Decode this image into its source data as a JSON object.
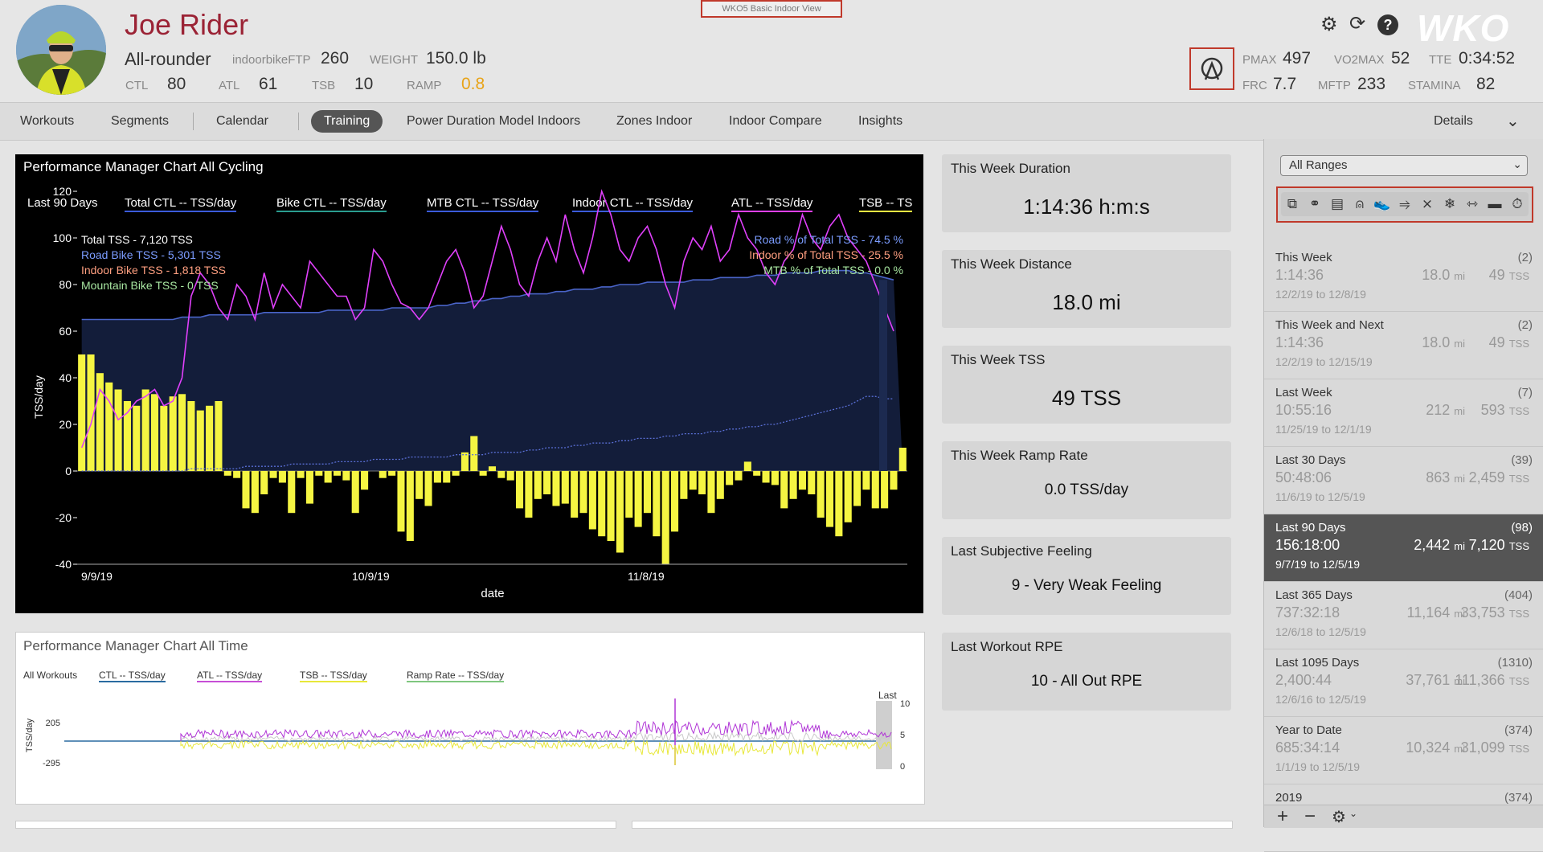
{
  "header": {
    "view_tag": "WKO5 Basic Indoor View",
    "athlete_name": "Joe Rider",
    "phenotype": "All-rounder",
    "ftp_label": "indoorbikeFTP",
    "ftp_value": "260",
    "weight_label": "WEIGHT",
    "weight_value": "150.0",
    "weight_unit": "lb",
    "ctl_label": "CTL",
    "ctl_value": "80",
    "atl_label": "ATL",
    "atl_value": "61",
    "tsb_label": "TSB",
    "tsb_value": "10",
    "ramp_label": "RAMP",
    "ramp_value": "0.8",
    "pmax_label": "PMAX",
    "pmax_value": "497",
    "vo2_label": "VO2MAX",
    "vo2_value": "52",
    "tte_label": "TTE",
    "tte_value": "0:34:52",
    "frc_label": "FRC",
    "frc_value": "7.7",
    "mftp_label": "MFTP",
    "mftp_value": "233",
    "stamina_label": "STAMINA",
    "stamina_value": "82",
    "logo": "WKO",
    "ramp_color": "#e8a317"
  },
  "tabs": {
    "items": [
      "Workouts",
      "Segments",
      "Calendar",
      "Training",
      "Power Duration Model Indoors",
      "Zones Indoor",
      "Indoor Compare",
      "Insights"
    ],
    "active": "Training",
    "details": "Details"
  },
  "pmc": {
    "title": "Performance Manager Chart All Cycling",
    "range_label": "Last 90 Days",
    "legend": [
      {
        "label": "Total CTL  -- TSS/day",
        "color": "#3b5bdb"
      },
      {
        "label": "Bike CTL  -- TSS/day",
        "color": "#2a9d8f"
      },
      {
        "label": "MTB CTL  -- TSS/day",
        "color": "#3b5bdb"
      },
      {
        "label": "Indoor CTL  -- TSS/day",
        "color": "#3b5bdb"
      },
      {
        "label": "ATL  -- TSS/day",
        "color": "#e040fb"
      },
      {
        "label": "TSB  -- TS",
        "color": "#f5f542"
      }
    ],
    "left_notes": [
      "Total TSS - 7,120 TSS",
      "Road Bike TSS - 5,301 TSS",
      "Indoor Bike TSS - 1,818 TSS",
      "Mountain Bike TSS - 0 TSS"
    ],
    "right_notes": [
      "Road % of Total TSS - 74.5 %",
      "Indoor % of Total TSS - 25.5 %",
      "MTB % of Total TSS - 0.0 %"
    ],
    "note_colors": [
      "#ffffff",
      "#7b9cff",
      "#ff9f80",
      "#a8e6a1"
    ],
    "yticks": [
      "120",
      "100",
      "80",
      "60",
      "40",
      "20",
      "0",
      "-20",
      "-40"
    ],
    "xticks": [
      "9/9/19",
      "10/9/19",
      "11/8/19"
    ],
    "xlabel": "date",
    "ylabel": "TSS/day"
  },
  "chart_data": {
    "type": "bar",
    "title": "Performance Manager Chart All Cycling",
    "xlabel": "date",
    "ylabel": "TSS/day",
    "ylim": [
      -40,
      125
    ],
    "x_ticks": [
      "9/9/19",
      "10/9/19",
      "11/8/19"
    ],
    "series": [
      {
        "name": "TSB  -- TS",
        "type": "bar",
        "values": [
          50,
          50,
          42,
          38,
          35,
          30,
          28,
          35,
          33,
          28,
          32,
          33,
          30,
          26,
          28,
          30,
          -2,
          -3,
          -16,
          -18,
          -10,
          -3,
          -5,
          -18,
          -3,
          -14,
          -2,
          -5,
          -2,
          -4,
          -18,
          -8,
          0,
          -3,
          -2,
          -26,
          -30,
          -12,
          -15,
          -5,
          -5,
          -2,
          8,
          15,
          -2,
          2,
          -3,
          -4,
          -16,
          -20,
          -12,
          -10,
          -15,
          -14,
          -20,
          -18,
          -25,
          -28,
          -30,
          -35,
          -20,
          -24,
          -18,
          -28,
          -40,
          -26,
          -12,
          -8,
          -10,
          -18,
          -12,
          -6,
          -4,
          4,
          -2,
          -5,
          -6,
          -16,
          -12,
          -8,
          -10,
          -20,
          -24,
          -28,
          -22,
          -15,
          -8,
          -16,
          -16,
          -8,
          10
        ]
      },
      {
        "name": "ATL  -- TSS/day",
        "type": "line",
        "values": [
          10,
          20,
          35,
          30,
          22,
          25,
          30,
          32,
          35,
          28,
          30,
          40,
          75,
          85,
          80,
          70,
          65,
          80,
          75,
          65,
          85,
          70,
          80,
          75,
          70,
          90,
          85,
          80,
          75,
          75,
          65,
          70,
          95,
          90,
          80,
          72,
          70,
          65,
          70,
          80,
          90,
          95,
          85,
          70,
          75,
          90,
          105,
          95,
          80,
          75,
          90,
          100,
          90,
          110,
          95,
          85,
          100,
          120,
          110,
          95,
          90,
          100,
          105,
          95,
          80,
          70,
          90,
          100,
          95,
          105,
          90,
          95,
          110,
          100,
          95,
          85,
          80,
          90,
          95,
          110,
          100,
          95,
          105,
          110,
          100,
          95,
          90,
          80,
          70,
          60
        ]
      },
      {
        "name": "Total CTL  -- TSS/day",
        "type": "line",
        "values": [
          65,
          65,
          65,
          65,
          65,
          65,
          65,
          65,
          65,
          65,
          65,
          66,
          66,
          66,
          67,
          67,
          67,
          67,
          67,
          67,
          68,
          68,
          68,
          68,
          68,
          68,
          68,
          69,
          69,
          69,
          69,
          69,
          69,
          69,
          70,
          70,
          70,
          70,
          70,
          71,
          71,
          72,
          72,
          73,
          73,
          74,
          74,
          75,
          75,
          76,
          76,
          76,
          77,
          77,
          78,
          78,
          78,
          79,
          79,
          80,
          80,
          80,
          81,
          81,
          81,
          81,
          81,
          82,
          82,
          82,
          83,
          83,
          83,
          83,
          84,
          84,
          84,
          85,
          85,
          85,
          85,
          86,
          86,
          86,
          86,
          85,
          85,
          84,
          83,
          82
        ]
      },
      {
        "name": "Indoor CTL  -- TSS/day",
        "type": "line",
        "values": [
          0,
          0,
          0,
          0,
          0,
          0,
          0,
          0,
          0,
          0,
          0,
          0,
          1,
          1,
          1,
          1,
          1,
          1,
          2,
          2,
          2,
          2,
          2,
          3,
          3,
          3,
          3,
          3,
          4,
          4,
          4,
          4,
          5,
          5,
          5,
          5,
          6,
          6,
          6,
          6,
          6,
          7,
          7,
          7,
          7,
          8,
          8,
          8,
          8,
          9,
          9,
          10,
          10,
          10,
          11,
          11,
          12,
          12,
          12,
          13,
          13,
          14,
          14,
          14,
          15,
          15,
          16,
          16,
          16,
          17,
          17,
          18,
          18,
          19,
          19,
          20,
          20,
          21,
          22,
          23,
          24,
          25,
          26,
          27,
          28,
          30,
          32,
          32,
          31,
          31
        ]
      }
    ]
  },
  "pmc2": {
    "title": "Performance Manager Chart All Time",
    "range_label": "All Workouts",
    "legend": [
      {
        "label": "CTL  -- TSS/day",
        "color": "#2a6ba0"
      },
      {
        "label": "ATL  -- TSS/day",
        "color": "#c74fd6"
      },
      {
        "label": "TSB  -- TSS/day",
        "color": "#e8e83a"
      },
      {
        "label": "Ramp Rate  -- TSS/day",
        "color": "#7fc77f"
      }
    ],
    "yticks_left": [
      "205",
      "-295"
    ],
    "yticks_right": [
      "10",
      "5",
      "0"
    ],
    "ylabel": "TSS/day",
    "last_label": "Last"
  },
  "cards": [
    {
      "title": "This Week Duration",
      "value": "1:14:36 h:m:s"
    },
    {
      "title": "This Week Distance",
      "value": "18.0 mi"
    },
    {
      "title": "This Week TSS",
      "value": "49 TSS"
    },
    {
      "title": "This Week Ramp Rate",
      "value": "0.0 TSS/day"
    },
    {
      "title": "Last Subjective Feeling",
      "value": "9 - Very Weak Feeling"
    },
    {
      "title": "Last Workout RPE",
      "value": "10 - All Out RPE"
    }
  ],
  "sidebar": {
    "range_select": "All Ranges",
    "sport_icons": [
      "multi-sport-icon",
      "bike-icon",
      "trainer-icon",
      "indoor-bike-icon",
      "run-icon",
      "shoe-icon",
      "ski-icon",
      "snowflake-icon",
      "strength-icon",
      "rowing-icon",
      "stopwatch-icon"
    ],
    "ranges": [
      {
        "title": "This Week",
        "count": "(2)",
        "dur": "1:14:36",
        "dist": "18.0",
        "dist_unit": "mi",
        "tss": "49",
        "tss_unit": "TSS",
        "dates": "12/2/19 to 12/8/19"
      },
      {
        "title": "This Week and Next",
        "count": "(2)",
        "dur": "1:14:36",
        "dist": "18.0",
        "dist_unit": "mi",
        "tss": "49",
        "tss_unit": "TSS",
        "dates": "12/2/19 to 12/15/19"
      },
      {
        "title": "Last Week",
        "count": "(7)",
        "dur": "10:55:16",
        "dist": "212",
        "dist_unit": "mi",
        "tss": "593",
        "tss_unit": "TSS",
        "dates": "11/25/19 to 12/1/19"
      },
      {
        "title": "Last 30 Days",
        "count": "(39)",
        "dur": "50:48:06",
        "dist": "863",
        "dist_unit": "mi",
        "tss": "2,459",
        "tss_unit": "TSS",
        "dates": "11/6/19 to 12/5/19"
      },
      {
        "title": "Last 90 Days",
        "count": "(98)",
        "dur": "156:18:00",
        "dist": "2,442",
        "dist_unit": "mi",
        "tss": "7,120",
        "tss_unit": "TSS",
        "dates": "9/7/19 to 12/5/19"
      },
      {
        "title": "Last 365 Days",
        "count": "(404)",
        "dur": "737:32:18",
        "dist": "11,164",
        "dist_unit": "mi",
        "tss": "33,753",
        "tss_unit": "TSS",
        "dates": "12/6/18 to 12/5/19"
      },
      {
        "title": "Last 1095 Days",
        "count": "(1310)",
        "dur": "2,400:44",
        "dist": "37,761",
        "dist_unit": "mi",
        "tss": "111,366",
        "tss_unit": "TSS",
        "dates": "12/6/16 to 12/5/19"
      },
      {
        "title": "Year to Date",
        "count": "(374)",
        "dur": "685:34:14",
        "dist": "10,324",
        "dist_unit": "mi",
        "tss": "31,099",
        "tss_unit": "TSS",
        "dates": "1/1/19 to 12/5/19"
      },
      {
        "title": "2019",
        "count": "(374)",
        "dur": "",
        "dist": "",
        "dist_unit": "",
        "tss": "",
        "tss_unit": "",
        "dates": ""
      }
    ],
    "selected_index": 4
  }
}
